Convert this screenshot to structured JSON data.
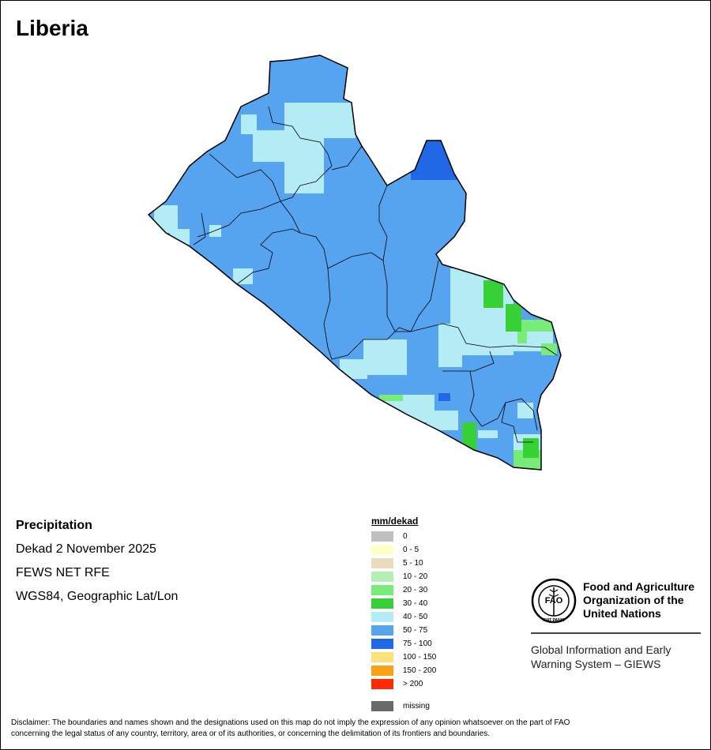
{
  "title": "Liberia",
  "info": {
    "heading": "Precipitation",
    "period": "Dekad 2 November 2025",
    "source": "FEWS NET RFE",
    "projection": "WGS84, Geographic Lat/Lon"
  },
  "legend": {
    "title": "mm/dekad",
    "items": [
      {
        "label": "0",
        "color": "#c0c0c0"
      },
      {
        "label": "0 - 5",
        "color": "#ffffc8"
      },
      {
        "label": "5 - 10",
        "color": "#ecdcbe"
      },
      {
        "label": "10 - 20",
        "color": "#b4f0b4"
      },
      {
        "label": "20 - 30",
        "color": "#78eb78"
      },
      {
        "label": "30 - 40",
        "color": "#37d037"
      },
      {
        "label": "40 - 50",
        "color": "#b4ecf6"
      },
      {
        "label": "50 - 75",
        "color": "#56a3f0"
      },
      {
        "label": "75 - 100",
        "color": "#2168e6"
      },
      {
        "label": "100 - 150",
        "color": "#fde27c"
      },
      {
        "label": "150 - 200",
        "color": "#fca015"
      },
      {
        "label": "> 200",
        "color": "#ff2a00"
      }
    ],
    "missing": {
      "label": "missing",
      "color": "#696969"
    }
  },
  "logo": {
    "org_line1": "Food and Agriculture",
    "org_line2": "Organization of the",
    "org_line3": "United Nations",
    "emblem_text": "FIAT PANIS",
    "system_line1": "Global Information and Early",
    "system_line2": "Warning System – GIEWS"
  },
  "disclaimer_line1": "Disclaimer: The boundaries and names shown and the designations used on this map do not imply the expression of any opinion whatsoever on the part of FAO",
  "disclaimer_line2": "concerning the legal status of any country, territory, area or of its authorities, or concerning the delimitation of its frontiers and boundaries."
}
